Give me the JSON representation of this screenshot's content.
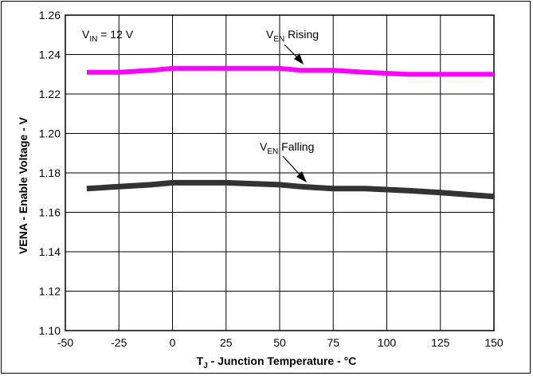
{
  "chart_data": {
    "type": "line",
    "xlabel": {
      "main": "T",
      "sub": "J",
      "rest": " - Junction Temperature - °C"
    },
    "ylabel": "VENA - Enable Voltage - V",
    "xlim": [
      -50,
      150
    ],
    "ylim": [
      1.1,
      1.26
    ],
    "x_ticks": [
      -50,
      -25,
      0,
      25,
      50,
      75,
      100,
      125,
      150
    ],
    "x_tick_labels": [
      "-50",
      "-25",
      "0",
      "25",
      "50",
      "75",
      "100",
      "125",
      "150"
    ],
    "y_ticks": [
      1.1,
      1.12,
      1.14,
      1.16,
      1.18,
      1.2,
      1.22,
      1.24,
      1.26
    ],
    "y_tick_labels": [
      "1.10",
      "1.12",
      "1.14",
      "1.16",
      "1.18",
      "1.20",
      "1.22",
      "1.24",
      "1.26"
    ],
    "grid": true,
    "condition": {
      "main": "V",
      "sub": "IN",
      "rest": " = 12 V"
    },
    "series": [
      {
        "name": {
          "main": "V",
          "sub": "EN",
          "rest": " Rising"
        },
        "color": "#ff00ff",
        "x": [
          -40,
          -25,
          -10,
          0,
          25,
          50,
          60,
          75,
          90,
          110,
          125,
          150
        ],
        "y": [
          1.231,
          1.231,
          1.232,
          1.233,
          1.233,
          1.233,
          1.232,
          1.232,
          1.231,
          1.23,
          1.23,
          1.23
        ]
      },
      {
        "name": {
          "main": "V",
          "sub": "EN",
          "rest": " Falling"
        },
        "color": "#333333",
        "x": [
          -40,
          -25,
          -10,
          0,
          25,
          50,
          60,
          75,
          90,
          110,
          125,
          150
        ],
        "y": [
          1.172,
          1.173,
          1.174,
          1.175,
          1.175,
          1.174,
          1.173,
          1.172,
          1.172,
          1.171,
          1.17,
          1.168
        ]
      }
    ]
  }
}
